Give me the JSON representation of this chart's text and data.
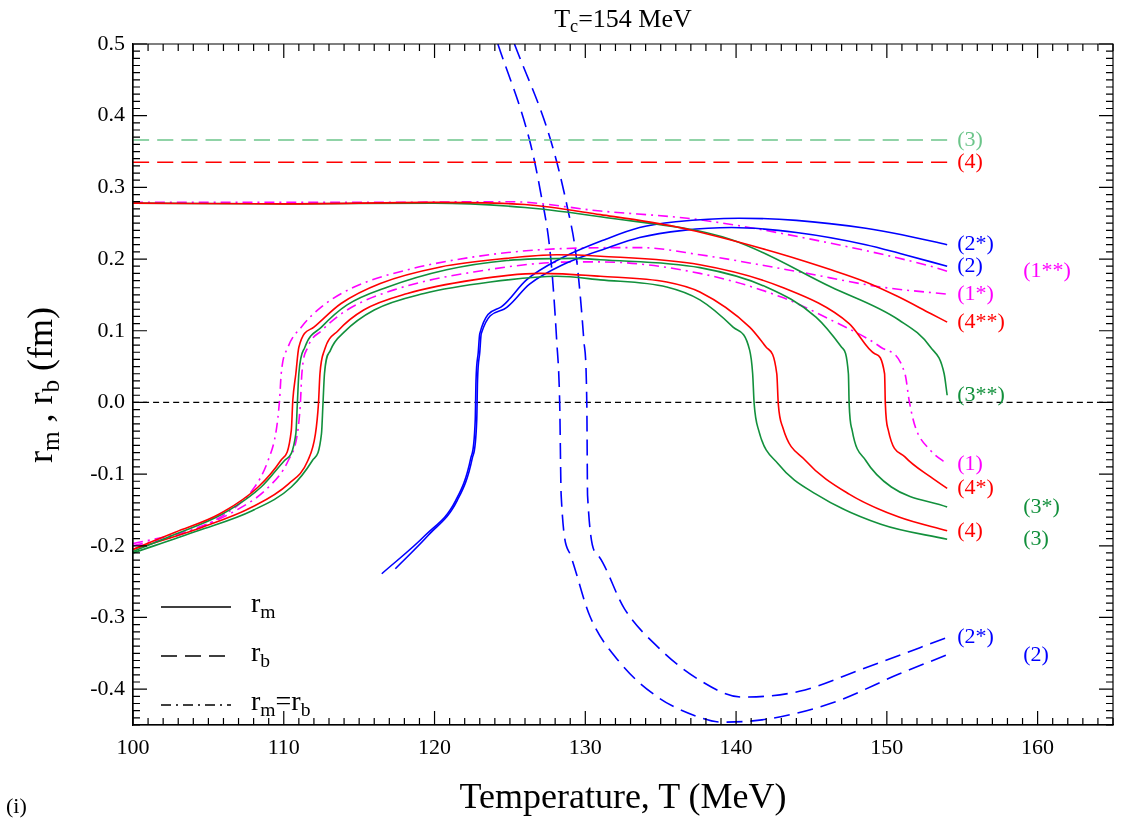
{
  "chart_data": {
    "type": "line",
    "title": "T$_{c}$=154 MeV",
    "xlabel": "Temperature, T (MeV)",
    "ylabel": "r$_{m}$ , r$_{b}$  (fm)",
    "xlim": [
      100,
      165
    ],
    "ylim": [
      -0.45,
      0.5
    ],
    "xticks": [
      100,
      {
        "value": 101,
        "label": null
      },
      {
        "value": 102,
        "label": null
      },
      {
        "value": 103,
        "label": null
      },
      {
        "value": 104,
        "label": null
      },
      {
        "value": 105,
        "label": null
      },
      {
        "value": 106,
        "label": null
      },
      {
        "value": 107,
        "label": null
      },
      {
        "value": 108,
        "label": null
      },
      {
        "value": 109,
        "label": null
      },
      110,
      {
        "value": 111,
        "label": null
      },
      {
        "value": 112,
        "label": null
      },
      {
        "value": 113,
        "label": null
      },
      {
        "value": 114,
        "label": null
      },
      {
        "value": 115,
        "label": null
      },
      {
        "value": 116,
        "label": null
      },
      {
        "value": 117,
        "label": null
      },
      {
        "value": 118,
        "label": null
      },
      {
        "value": 119,
        "label": null
      },
      120,
      {
        "value": 121,
        "label": null
      },
      {
        "value": 122,
        "label": null
      },
      {
        "value": 123,
        "label": null
      },
      {
        "value": 124,
        "label": null
      },
      {
        "value": 125,
        "label": null
      },
      {
        "value": 126,
        "label": null
      },
      {
        "value": 127,
        "label": null
      },
      {
        "value": 128,
        "label": null
      },
      {
        "value": 129,
        "label": null
      },
      130,
      {
        "value": 131,
        "label": null
      },
      {
        "value": 132,
        "label": null
      },
      {
        "value": 133,
        "label": null
      },
      {
        "value": 134,
        "label": null
      },
      {
        "value": 135,
        "label": null
      },
      {
        "value": 136,
        "label": null
      },
      {
        "value": 137,
        "label": null
      },
      {
        "value": 138,
        "label": null
      },
      {
        "value": 139,
        "label": null
      },
      140,
      {
        "value": 141,
        "label": null
      },
      {
        "value": 142,
        "label": null
      },
      {
        "value": 143,
        "label": null
      },
      {
        "value": 144,
        "label": null
      },
      {
        "value": 145,
        "label": null
      },
      {
        "value": 146,
        "label": null
      },
      {
        "value": 147,
        "label": null
      },
      {
        "value": 148,
        "label": null
      },
      {
        "value": 149,
        "label": null
      },
      150,
      {
        "value": 151,
        "label": null
      },
      {
        "value": 152,
        "label": null
      },
      {
        "value": 153,
        "label": null
      },
      {
        "value": 154,
        "label": null
      },
      {
        "value": 155,
        "label": null
      },
      {
        "value": 156,
        "label": null
      },
      {
        "value": 157,
        "label": null
      },
      {
        "value": 158,
        "label": null
      },
      {
        "value": 159,
        "label": null
      },
      160,
      {
        "value": 161,
        "label": null
      },
      {
        "value": 162,
        "label": null
      },
      {
        "value": 163,
        "label": null
      },
      {
        "value": 164,
        "label": null
      },
      {
        "value": 165,
        "label": null
      }
    ],
    "yticks": [
      {
        "value": -0.45,
        "label": null
      },
      {
        "value": -0.44,
        "label": null
      },
      {
        "value": -0.43,
        "label": null
      },
      {
        "value": -0.42,
        "label": null
      },
      {
        "value": -0.41,
        "label": null
      },
      -0.4,
      {
        "value": -0.39,
        "label": null
      },
      {
        "value": -0.38,
        "label": null
      },
      {
        "value": -0.37,
        "label": null
      },
      {
        "value": -0.36,
        "label": null
      },
      {
        "value": -0.35,
        "label": null
      },
      {
        "value": -0.34,
        "label": null
      },
      {
        "value": -0.33,
        "label": null
      },
      {
        "value": -0.32,
        "label": null
      },
      {
        "value": -0.31,
        "label": null
      },
      -0.3,
      {
        "value": -0.29,
        "label": null
      },
      {
        "value": -0.28,
        "label": null
      },
      {
        "value": -0.27,
        "label": null
      },
      {
        "value": -0.26,
        "label": null
      },
      {
        "value": -0.25,
        "label": null
      },
      {
        "value": -0.24,
        "label": null
      },
      {
        "value": -0.23,
        "label": null
      },
      {
        "value": -0.22,
        "label": null
      },
      {
        "value": -0.21,
        "label": null
      },
      -0.2,
      {
        "value": -0.19,
        "label": null
      },
      {
        "value": -0.18,
        "label": null
      },
      {
        "value": -0.17,
        "label": null
      },
      {
        "value": -0.16,
        "label": null
      },
      {
        "value": -0.15,
        "label": null
      },
      {
        "value": -0.14,
        "label": null
      },
      {
        "value": -0.13,
        "label": null
      },
      {
        "value": -0.12,
        "label": null
      },
      {
        "value": -0.11,
        "label": null
      },
      -0.1,
      {
        "value": -0.09,
        "label": null
      },
      {
        "value": -0.08,
        "label": null
      },
      {
        "value": -0.07,
        "label": null
      },
      {
        "value": -0.06,
        "label": null
      },
      {
        "value": -0.05,
        "label": null
      },
      {
        "value": -0.04,
        "label": null
      },
      {
        "value": -0.03,
        "label": null
      },
      {
        "value": -0.02,
        "label": null
      },
      {
        "value": -0.01,
        "label": null
      },
      {
        "value": 0,
        "label": "0.0"
      },
      {
        "value": 0.01,
        "label": null
      },
      {
        "value": 0.02,
        "label": null
      },
      {
        "value": 0.03,
        "label": null
      },
      {
        "value": 0.04,
        "label": null
      },
      {
        "value": 0.05,
        "label": null
      },
      {
        "value": 0.06,
        "label": null
      },
      {
        "value": 0.07,
        "label": null
      },
      {
        "value": 0.08,
        "label": null
      },
      {
        "value": 0.09,
        "label": null
      },
      0.1,
      {
        "value": 0.11,
        "label": null
      },
      {
        "value": 0.12,
        "label": null
      },
      {
        "value": 0.13,
        "label": null
      },
      {
        "value": 0.14,
        "label": null
      },
      {
        "value": 0.15,
        "label": null
      },
      {
        "value": 0.16,
        "label": null
      },
      {
        "value": 0.17,
        "label": null
      },
      {
        "value": 0.18,
        "label": null
      },
      {
        "value": 0.19,
        "label": null
      },
      0.2,
      {
        "value": 0.21,
        "label": null
      },
      {
        "value": 0.22,
        "label": null
      },
      {
        "value": 0.23,
        "label": null
      },
      {
        "value": 0.24,
        "label": null
      },
      {
        "value": 0.25,
        "label": null
      },
      {
        "value": 0.26,
        "label": null
      },
      {
        "value": 0.27,
        "label": null
      },
      {
        "value": 0.28,
        "label": null
      },
      {
        "value": 0.29,
        "label": null
      },
      0.3,
      {
        "value": 0.31,
        "label": null
      },
      {
        "value": 0.32,
        "label": null
      },
      {
        "value": 0.33,
        "label": null
      },
      {
        "value": 0.34,
        "label": null
      },
      {
        "value": 0.35,
        "label": null
      },
      {
        "value": 0.36,
        "label": null
      },
      {
        "value": 0.37,
        "label": null
      },
      {
        "value": 0.38,
        "label": null
      },
      {
        "value": 0.39,
        "label": null
      },
      0.4,
      {
        "value": 0.41,
        "label": null
      },
      {
        "value": 0.42,
        "label": null
      },
      {
        "value": 0.43,
        "label": null
      },
      {
        "value": 0.44,
        "label": null
      },
      {
        "value": 0.45,
        "label": null
      },
      {
        "value": 0.46,
        "label": null
      },
      {
        "value": 0.47,
        "label": null
      },
      {
        "value": 0.48,
        "label": null
      },
      {
        "value": 0.49,
        "label": null
      },
      0.5
    ],
    "grid": false,
    "marker": "none",
    "ref_lines": [
      {
        "axis": "y",
        "value": 0,
        "color": "#000000",
        "line_style": "dashed"
      }
    ],
    "annotations": [
      "r$_{m}$",
      "r$_{b}$",
      "r$_{m}$=r$_{b}$",
      "(i)"
    ],
    "series": [
      {
        "name": "(4**)",
        "color": "#ff0000",
        "line_style": "solid",
        "x": [
          100,
          110,
          120,
          126,
          131,
          136,
          142,
          146.3,
          148.6,
          150.7,
          152.9,
          154
        ],
        "values": [
          0.278,
          0.277,
          0.279,
          0.276,
          0.262,
          0.245,
          0.213,
          0.185,
          0.168,
          0.148,
          0.124,
          0.112
        ]
      },
      {
        "name": "(3**)",
        "color": "#12903c",
        "line_style": "solid",
        "x": [
          100,
          110,
          120,
          126,
          131,
          139.7,
          146.3,
          150.8,
          152.9,
          153.8,
          154
        ],
        "values": [
          0.278,
          0.277,
          0.278,
          0.272,
          0.259,
          0.227,
          0.161,
          0.115,
          0.077,
          0.04,
          0.01
        ]
      },
      {
        "name": "(4*)",
        "color": "#ff0000",
        "line_style": "solid",
        "x": [
          100,
          102.8,
          105.7,
          108.3,
          109.8,
          110.5,
          110.6,
          110.8,
          111.0,
          112.0,
          113.8,
          116.4,
          120.4,
          124.8,
          128.1,
          131,
          137.6,
          143.0,
          147.5,
          149.2,
          149.85,
          149.9,
          150.1,
          151.2,
          152.9,
          154
        ],
        "values": [
          -0.205,
          -0.181,
          -0.156,
          -0.118,
          -0.081,
          -0.039,
          0.003,
          0.04,
          0.077,
          0.105,
          0.138,
          0.166,
          0.189,
          0.201,
          0.206,
          0.204,
          0.192,
          0.161,
          0.11,
          0.068,
          0.04,
          -0.002,
          -0.039,
          -0.076,
          -0.104,
          -0.12
        ]
      },
      {
        "name": "(3*)",
        "color": "#12903c",
        "line_style": "solid",
        "x": [
          100,
          102.8,
          105.9,
          108.5,
          110.05,
          110.8,
          110.9,
          111.0,
          111.4,
          112.5,
          114.2,
          116.9,
          120.8,
          124.8,
          129.2,
          131,
          137.6,
          142.0,
          145.3,
          147.0,
          147.45,
          147.5,
          147.7,
          148.6,
          150.3,
          154
        ],
        "values": [
          -0.208,
          -0.184,
          -0.156,
          -0.118,
          -0.081,
          -0.044,
          -0.002,
          0.04,
          0.077,
          0.105,
          0.136,
          0.161,
          0.185,
          0.198,
          0.201,
          0.199,
          0.188,
          0.161,
          0.119,
          0.077,
          0.04,
          -0.002,
          -0.039,
          -0.081,
          -0.118,
          -0.146
        ]
      },
      {
        "name": "(4)",
        "color": "#ff0000",
        "line_style": "solid",
        "x": [
          100,
          104.6,
          107.9,
          110.3,
          111.6,
          112.1,
          112.3,
          112.4,
          112.7,
          113.6,
          115.3,
          118.2,
          122.6,
          127.0,
          131,
          135.4,
          137.6,
          140.9,
          142.0,
          142.7,
          142.8,
          143.1,
          144.6,
          147.5,
          150.8,
          154
        ],
        "values": [
          -0.205,
          -0.174,
          -0.146,
          -0.114,
          -0.081,
          -0.044,
          -0.002,
          0.04,
          0.073,
          0.1,
          0.129,
          0.152,
          0.171,
          0.18,
          0.176,
          0.168,
          0.154,
          0.105,
          0.077,
          0.04,
          -0.002,
          -0.035,
          -0.081,
          -0.128,
          -0.16,
          -0.179
        ]
      },
      {
        "name": "(3)",
        "color": "#12903c",
        "line_style": "solid",
        "x": [
          100,
          104.3,
          107.9,
          110.5,
          111.9,
          112.5,
          112.6,
          112.7,
          113.1,
          114.0,
          116.0,
          119.3,
          123.7,
          128.1,
          131,
          135.4,
          137.6,
          139.8,
          140.9,
          141.1,
          141.2,
          141.5,
          142.8,
          145.3,
          149.6,
          154
        ],
        "values": [
          -0.21,
          -0.179,
          -0.151,
          -0.118,
          -0.081,
          -0.044,
          -0.002,
          0.04,
          0.073,
          0.098,
          0.129,
          0.152,
          0.168,
          0.176,
          0.171,
          0.161,
          0.143,
          0.105,
          0.073,
          0.04,
          -0.002,
          -0.039,
          -0.086,
          -0.128,
          -0.17,
          -0.191
        ]
      },
      {
        "name": "(2*)",
        "color": "#0000ff",
        "line_style": "solid",
        "x": [
          116.5,
          119.4,
          121.4,
          122.4,
          122.7,
          122.75,
          122.9,
          123.0,
          124.4,
          126.1,
          128.3,
          131.4,
          133.6,
          136,
          140.2,
          144,
          148.6,
          151,
          154
        ],
        "values": [
          -0.239,
          -0.185,
          -0.137,
          -0.078,
          -0.024,
          0.03,
          0.07,
          0.096,
          0.133,
          0.171,
          0.2,
          0.228,
          0.244,
          0.252,
          0.257,
          0.254,
          0.243,
          0.234,
          0.22
        ]
      },
      {
        "name": "(2)",
        "color": "#0000ff",
        "line_style": "solid",
        "x": [
          117.4,
          119.6,
          121.5,
          122.5,
          122.8,
          122.85,
          123.0,
          123.1,
          124.6,
          126.3,
          128.5,
          131.4,
          133.6,
          136.5,
          139.7,
          144,
          148.6,
          151,
          154
        ],
        "values": [
          -0.232,
          -0.185,
          -0.137,
          -0.078,
          -0.024,
          0.03,
          0.07,
          0.096,
          0.13,
          0.165,
          0.192,
          0.215,
          0.23,
          0.24,
          0.244,
          0.237,
          0.22,
          0.207,
          0.19
        ]
      },
      {
        "name": "(3)",
        "color": "#6cc58a",
        "line_style": "dashed",
        "x": [
          100,
          154
        ],
        "values": [
          0.366,
          0.366
        ]
      },
      {
        "name": "(4)",
        "color": "#ff0000",
        "line_style": "dashed",
        "x": [
          100,
          154
        ],
        "values": [
          0.335,
          0.335
        ]
      },
      {
        "name": "(2)",
        "color": "#0000ff",
        "line_style": "dashed",
        "x": [
          124.2,
          126.3,
          127.0,
          127.7,
          128.1,
          128.3,
          128.4,
          129.0,
          130.3,
          132.3,
          134.8,
          137.4,
          139,
          142.0,
          146.4,
          150.8,
          154
        ],
        "values": [
          0.5,
          0.366,
          0.297,
          0.203,
          0.087,
          0.0,
          -0.13,
          -0.212,
          -0.298,
          -0.363,
          -0.411,
          -0.438,
          -0.446,
          -0.442,
          -0.419,
          -0.379,
          -0.352
        ]
      },
      {
        "name": "(2*)",
        "color": "#0000ff",
        "line_style": "dashed",
        "x": [
          125.3,
          127.7,
          128.8,
          129.4,
          129.9,
          130.1,
          130.15,
          130.8,
          132.6,
          134.8,
          137.4,
          140.4,
          144.2,
          148.6,
          154
        ],
        "values": [
          0.5,
          0.366,
          0.273,
          0.203,
          0.087,
          -0.002,
          -0.13,
          -0.212,
          -0.288,
          -0.341,
          -0.385,
          -0.411,
          -0.403,
          -0.37,
          -0.328
        ]
      },
      {
        "name": "(1**)",
        "color": "#ff00ff",
        "line_style": "dashdot",
        "x": [
          100,
          115,
          125,
          131,
          137.5,
          146.3,
          152.9,
          154
        ],
        "values": [
          0.279,
          0.279,
          0.28,
          0.267,
          0.255,
          0.222,
          0.19,
          0.183
        ]
      },
      {
        "name": "(1*)",
        "color": "#ff00ff",
        "line_style": "dashdot",
        "x": [
          100,
          103.2,
          106.1,
          107.9,
          108.96,
          109.5,
          109.72,
          109.83,
          110.28,
          111.16,
          112.48,
          114.67,
          118.2,
          122.6,
          127.0,
          133.6,
          137.6,
          144.2,
          149.6,
          154
        ],
        "values": [
          -0.2,
          -0.184,
          -0.156,
          -0.123,
          -0.081,
          -0.039,
          0.003,
          0.04,
          0.077,
          0.105,
          0.133,
          0.161,
          0.185,
          0.203,
          0.213,
          0.216,
          0.206,
          0.182,
          0.161,
          0.151
        ]
      },
      {
        "name": "(1)",
        "color": "#ff00ff",
        "line_style": "dashdot",
        "x": [
          100,
          103.7,
          106.8,
          109.0,
          110.3,
          110.9,
          111.1,
          111.2,
          111.6,
          112.5,
          114.2,
          117.3,
          122.6,
          129.2,
          131,
          137.6,
          143.0,
          146.3,
          149.6,
          151.2,
          151.5,
          151.9,
          152.9,
          154
        ],
        "values": [
          -0.197,
          -0.179,
          -0.151,
          -0.118,
          -0.081,
          -0.044,
          -0.002,
          0.04,
          0.077,
          0.1,
          0.129,
          0.157,
          0.182,
          0.196,
          0.196,
          0.18,
          0.147,
          0.115,
          0.077,
          0.04,
          0.0,
          -0.035,
          -0.067,
          -0.086
        ]
      }
    ]
  }
}
